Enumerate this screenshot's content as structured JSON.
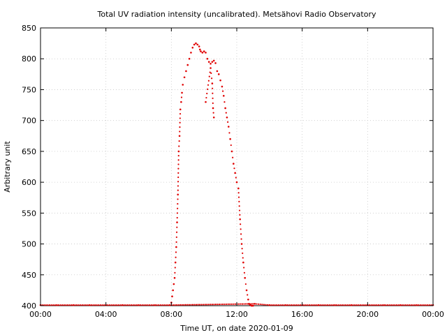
{
  "chart_data": {
    "type": "scatter",
    "title": "Total UV radiation intensity (uncalibrated). Metsähovi Radio Observatory",
    "xlabel": "Time UT, on date 2020-01-09",
    "ylabel": "Arbitrary unit",
    "x_unit": "hour of day (UT)",
    "xlim": [
      0,
      24
    ],
    "ylim": [
      400,
      850
    ],
    "x_ticks": [
      0,
      4,
      8,
      12,
      16,
      20,
      24
    ],
    "x_tick_labels": [
      "00:00",
      "04:00",
      "08:00",
      "12:00",
      "16:00",
      "20:00",
      "00:00"
    ],
    "y_ticks": [
      400,
      450,
      500,
      550,
      600,
      650,
      700,
      750,
      800,
      850
    ],
    "y_tick_labels": [
      "400",
      "450",
      "500",
      "550",
      "600",
      "650",
      "700",
      "750",
      "800",
      "850"
    ],
    "grid": true,
    "legend": "none",
    "series_color": "#e00000",
    "series": [
      {
        "x": [
          8.0,
          8.05,
          8.1,
          8.15,
          8.2,
          8.25,
          8.3,
          8.35,
          8.4,
          8.45,
          8.5,
          8.55,
          8.6,
          8.65,
          8.7,
          8.8,
          8.9,
          9.0,
          9.1,
          9.2,
          9.3,
          9.4,
          9.5,
          9.6,
          9.7,
          9.75,
          9.8,
          9.9,
          10.0,
          10.1,
          10.2,
          10.3,
          10.4,
          10.5,
          10.6,
          10.7,
          10.8,
          10.9,
          11.0,
          11.1,
          11.2,
          11.3,
          11.4,
          11.5,
          11.6,
          11.7,
          11.8,
          11.9,
          12.0,
          12.1,
          12.2,
          12.3,
          12.4,
          12.5,
          12.6,
          12.7,
          12.75,
          12.8,
          12.85,
          12.9,
          12.95,
          13.0
        ],
        "y": [
          405,
          415,
          425,
          435,
          445,
          470,
          495,
          535,
          580,
          650,
          675,
          718,
          730,
          745,
          758,
          770,
          780,
          790,
          800,
          810,
          818,
          823,
          825,
          823,
          820,
          815,
          812,
          810,
          812,
          810,
          800,
          795,
          792,
          795,
          797,
          793,
          780,
          775,
          765,
          755,
          740,
          720,
          705,
          690,
          670,
          650,
          630,
          615,
          600,
          590,
          540,
          500,
          470,
          445,
          425,
          410,
          403,
          402,
          401,
          400,
          400,
          400
        ]
      },
      {
        "x": [
          10.1,
          10.4,
          10.5,
          10.55,
          10.6
        ],
        "y": [
          730,
          785,
          760,
          720,
          705
        ]
      },
      {
        "x": [
          0.0,
          1.0,
          2.0,
          3.0,
          4.0,
          5.0,
          6.0,
          7.0,
          7.9,
          13.1,
          14.0,
          15.0,
          16.0,
          17.0,
          18.0,
          19.0,
          20.0,
          21.0,
          22.0,
          23.0,
          24.0
        ],
        "y": [
          401,
          401,
          401,
          401,
          401,
          401,
          401,
          401,
          401,
          403,
          401,
          401,
          401,
          401,
          401,
          401,
          401,
          401,
          401,
          401,
          401
        ]
      }
    ]
  }
}
